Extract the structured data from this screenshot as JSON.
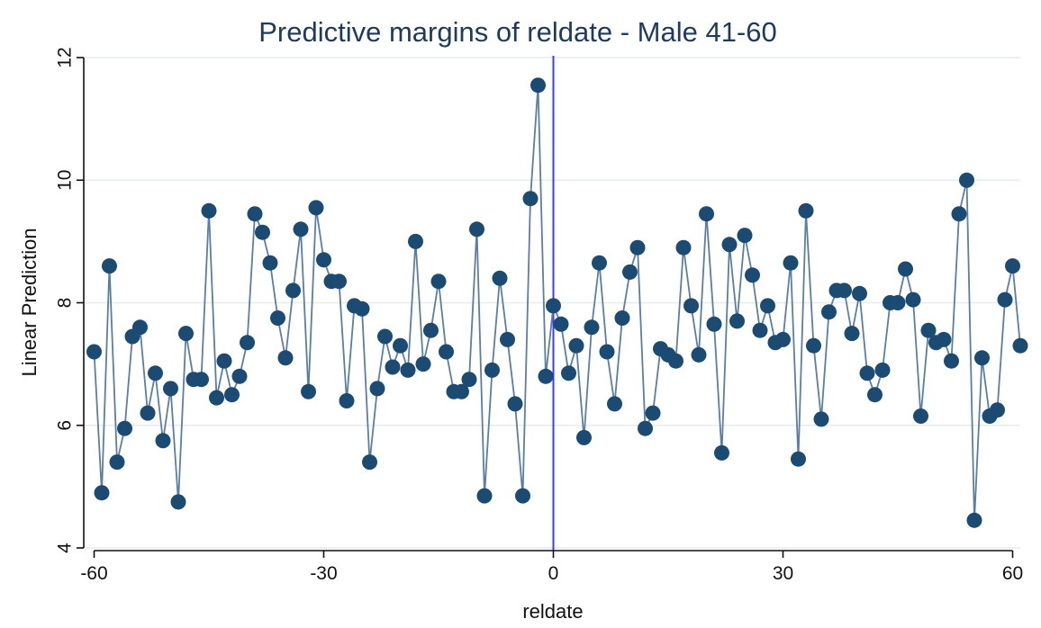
{
  "colors": {
    "line": "#5a7ea6",
    "marker": "#1b4a72",
    "refline": "#3b3bff",
    "grid": "#e7ecef"
  },
  "chart_data": {
    "type": "line",
    "title": "Predictive margins of reldate - Male 41-60",
    "xlabel": "reldate",
    "ylabel": "Linear Prediction",
    "xlim": [
      -61,
      61
    ],
    "ylim": [
      4,
      12
    ],
    "xticks": [
      -60,
      -30,
      0,
      30,
      60
    ],
    "yticks": [
      4,
      6,
      8,
      10,
      12
    ],
    "grid": true,
    "reference_line_x": 0,
    "markers": true,
    "x": [
      -60,
      -59,
      -58,
      -57,
      -56,
      -55,
      -54,
      -53,
      -52,
      -51,
      -50,
      -49,
      -48,
      -47,
      -46,
      -45,
      -44,
      -43,
      -42,
      -41,
      -40,
      -39,
      -38,
      -37,
      -36,
      -35,
      -34,
      -33,
      -32,
      -31,
      -30,
      -29,
      -28,
      -27,
      -26,
      -25,
      -24,
      -23,
      -22,
      -21,
      -20,
      -19,
      -18,
      -17,
      -16,
      -15,
      -14,
      -13,
      -12,
      -11,
      -10,
      -9,
      -8,
      -7,
      -6,
      -5,
      -4,
      -3,
      -2,
      -1,
      0,
      1,
      2,
      3,
      4,
      5,
      6,
      7,
      8,
      9,
      10,
      11,
      12,
      13,
      14,
      15,
      16,
      17,
      18,
      19,
      20,
      21,
      22,
      23,
      24,
      25,
      26,
      27,
      28,
      29,
      30,
      31,
      32,
      33,
      34,
      35,
      36,
      37,
      38,
      39,
      40,
      41,
      42,
      43,
      44,
      45,
      46,
      47,
      48,
      49,
      50,
      51,
      52,
      53,
      54,
      55,
      56,
      57,
      58,
      59,
      60,
      61
    ],
    "y": [
      7.2,
      4.9,
      8.6,
      5.4,
      5.95,
      7.45,
      7.6,
      6.2,
      6.85,
      5.75,
      6.6,
      4.75,
      7.5,
      6.75,
      6.75,
      9.5,
      6.45,
      7.05,
      6.5,
      6.8,
      7.35,
      9.45,
      9.15,
      8.65,
      7.75,
      7.1,
      8.2,
      9.2,
      6.55,
      9.55,
      8.7,
      8.35,
      8.35,
      6.4,
      7.95,
      7.9,
      5.4,
      6.6,
      7.45,
      6.95,
      7.3,
      6.9,
      9.0,
      7.0,
      7.55,
      8.35,
      7.2,
      6.55,
      6.55,
      6.75,
      9.2,
      4.85,
      6.9,
      8.4,
      7.4,
      6.35,
      4.85,
      9.7,
      11.55,
      6.8,
      7.95,
      7.65,
      6.85,
      7.3,
      5.8,
      7.6,
      8.65,
      7.2,
      6.35,
      7.75,
      8.5,
      8.9,
      5.95,
      6.2,
      7.25,
      7.15,
      7.05,
      8.9,
      7.95,
      7.15,
      9.45,
      7.65,
      5.55,
      8.95,
      7.7,
      9.1,
      8.45,
      7.55,
      7.95,
      7.35,
      7.4,
      8.65,
      5.45,
      9.5,
      7.3,
      6.1,
      7.85,
      8.2,
      8.2,
      7.5,
      8.15,
      6.85,
      6.5,
      6.9,
      8.0,
      8.0,
      8.55,
      8.05,
      6.15,
      7.55,
      7.35,
      7.4,
      7.05,
      9.45,
      10.0,
      4.45,
      7.1,
      6.15,
      6.25,
      8.05,
      8.6,
      7.3
    ]
  }
}
